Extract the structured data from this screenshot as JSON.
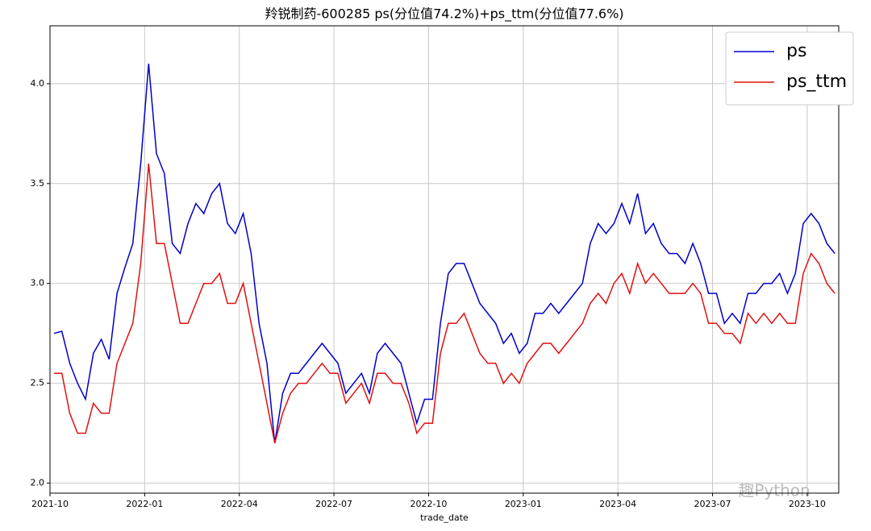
{
  "chart_data": {
    "type": "line",
    "title": "羚锐制药-600285 ps(分位值74.2%)+ps_ttm(分位值77.6%)",
    "xlabel": "trade_date",
    "watermark": "趣Python",
    "x": [
      "2021-10",
      "2021-10",
      "2021-10",
      "2021-10",
      "2021-11",
      "2021-11",
      "2021-11",
      "2021-11",
      "2021-12",
      "2021-12",
      "2021-12",
      "2021-12",
      "2022-01",
      "2022-01",
      "2022-01",
      "2022-01",
      "2022-02",
      "2022-02",
      "2022-02",
      "2022-02",
      "2022-03",
      "2022-03",
      "2022-03",
      "2022-03",
      "2022-04",
      "2022-04",
      "2022-04",
      "2022-04",
      "2022-05",
      "2022-05",
      "2022-05",
      "2022-05",
      "2022-06",
      "2022-06",
      "2022-06",
      "2022-06",
      "2022-07",
      "2022-07",
      "2022-07",
      "2022-07",
      "2022-08",
      "2022-08",
      "2022-08",
      "2022-08",
      "2022-09",
      "2022-09",
      "2022-09",
      "2022-09",
      "2022-10",
      "2022-10",
      "2022-10",
      "2022-10",
      "2022-11",
      "2022-11",
      "2022-11",
      "2022-11",
      "2022-12",
      "2022-12",
      "2022-12",
      "2022-12",
      "2023-01",
      "2023-01",
      "2023-01",
      "2023-01",
      "2023-02",
      "2023-02",
      "2023-02",
      "2023-02",
      "2023-03",
      "2023-03",
      "2023-03",
      "2023-03",
      "2023-04",
      "2023-04",
      "2023-04",
      "2023-04",
      "2023-05",
      "2023-05",
      "2023-05",
      "2023-05",
      "2023-06",
      "2023-06",
      "2023-06",
      "2023-06",
      "2023-07",
      "2023-07",
      "2023-07",
      "2023-07",
      "2023-08",
      "2023-08",
      "2023-08",
      "2023-08",
      "2023-09",
      "2023-09",
      "2023-09",
      "2023-09",
      "2023-10",
      "2023-10",
      "2023-10",
      "2023-10"
    ],
    "series": [
      {
        "name": "ps",
        "color": "#0000c8",
        "values": [
          2.75,
          2.76,
          2.6,
          2.5,
          2.42,
          2.65,
          2.72,
          2.62,
          2.95,
          3.08,
          3.2,
          3.6,
          4.1,
          3.65,
          3.55,
          3.2,
          3.15,
          3.3,
          3.4,
          3.35,
          3.45,
          3.5,
          3.3,
          3.25,
          3.35,
          3.15,
          2.8,
          2.6,
          2.2,
          2.45,
          2.55,
          2.55,
          2.6,
          2.65,
          2.7,
          2.65,
          2.6,
          2.45,
          2.5,
          2.55,
          2.45,
          2.65,
          2.7,
          2.65,
          2.6,
          2.45,
          2.3,
          2.42,
          2.42,
          2.8,
          3.05,
          3.1,
          3.1,
          3.0,
          2.9,
          2.85,
          2.8,
          2.7,
          2.75,
          2.65,
          2.7,
          2.85,
          2.85,
          2.9,
          2.85,
          2.9,
          2.95,
          3.0,
          3.2,
          3.3,
          3.25,
          3.3,
          3.4,
          3.3,
          3.45,
          3.25,
          3.3,
          3.2,
          3.15,
          3.15,
          3.1,
          3.2,
          3.1,
          2.95,
          2.95,
          2.8,
          2.85,
          2.8,
          2.95,
          2.95,
          3.0,
          3.0,
          3.05,
          2.95,
          3.05,
          3.3,
          3.35,
          3.3,
          3.2,
          3.15
        ]
      },
      {
        "name": "ps_ttm",
        "color": "#e01010",
        "values": [
          2.55,
          2.55,
          2.35,
          2.25,
          2.25,
          2.4,
          2.35,
          2.35,
          2.6,
          2.7,
          2.8,
          3.1,
          3.6,
          3.2,
          3.2,
          3.0,
          2.8,
          2.8,
          2.9,
          3.0,
          3.0,
          3.05,
          2.9,
          2.9,
          3.0,
          2.8,
          2.6,
          2.4,
          2.2,
          2.35,
          2.45,
          2.5,
          2.5,
          2.55,
          2.6,
          2.55,
          2.55,
          2.4,
          2.45,
          2.5,
          2.4,
          2.55,
          2.55,
          2.5,
          2.5,
          2.4,
          2.25,
          2.3,
          2.3,
          2.65,
          2.8,
          2.8,
          2.85,
          2.75,
          2.65,
          2.6,
          2.6,
          2.5,
          2.55,
          2.5,
          2.6,
          2.65,
          2.7,
          2.7,
          2.65,
          2.7,
          2.75,
          2.8,
          2.9,
          2.95,
          2.9,
          3.0,
          3.05,
          2.95,
          3.1,
          3.0,
          3.05,
          3.0,
          2.95,
          2.95,
          2.95,
          3.0,
          2.95,
          2.8,
          2.8,
          2.75,
          2.75,
          2.7,
          2.85,
          2.8,
          2.85,
          2.8,
          2.85,
          2.8,
          2.8,
          3.05,
          3.15,
          3.1,
          3.0,
          2.95
        ]
      }
    ],
    "xlim": [
      "2021-10",
      "2023-11"
    ],
    "xticks": [
      "2021-10",
      "2022-01",
      "2022-04",
      "2022-07",
      "2022-10",
      "2023-01",
      "2023-04",
      "2023-07",
      "2023-10"
    ],
    "ylim": [
      1.95,
      4.29
    ],
    "yticks": [
      {
        "value": 2,
        "label": "2.0"
      },
      {
        "value": 2.5,
        "label": "2.5"
      },
      {
        "value": 3,
        "label": "3.0"
      },
      {
        "value": 3.5,
        "label": "3.5"
      },
      {
        "value": 4,
        "label": "4.0"
      }
    ],
    "grid": true,
    "legend": "upper right"
  }
}
